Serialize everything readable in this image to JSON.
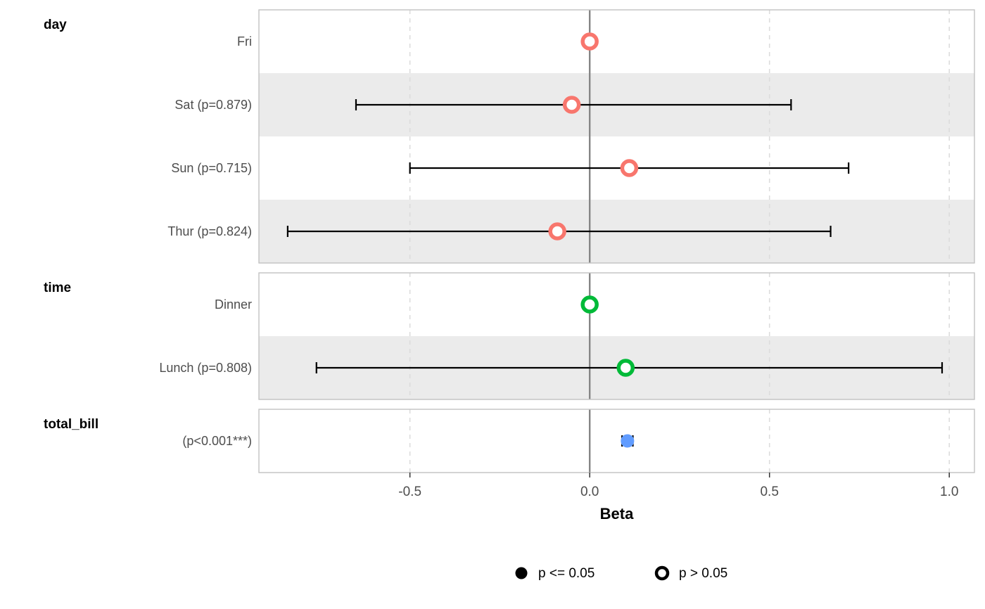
{
  "chart_data": {
    "type": "forest",
    "title": "",
    "xlabel": "Beta",
    "xlim": [
      -0.92,
      1.07
    ],
    "xticks": [
      -0.5,
      0.0,
      0.5,
      1.0
    ],
    "zero_line": 0.0,
    "grid": "dashed-vertical",
    "legend_position": "bottom",
    "groups": [
      {
        "label": "day",
        "color": "#F8766D",
        "rows": [
          {
            "label": "Fri",
            "estimate": 0.0,
            "ci_low": null,
            "ci_high": null,
            "reference": true,
            "open": true
          },
          {
            "label": "Sat (p=0.879)",
            "estimate": -0.05,
            "ci_low": -0.65,
            "ci_high": 0.56,
            "reference": false,
            "open": true
          },
          {
            "label": "Sun (p=0.715)",
            "estimate": 0.11,
            "ci_low": -0.5,
            "ci_high": 0.72,
            "reference": false,
            "open": true
          },
          {
            "label": "Thur (p=0.824)",
            "estimate": -0.09,
            "ci_low": -0.84,
            "ci_high": 0.67,
            "reference": false,
            "open": true
          }
        ]
      },
      {
        "label": "time",
        "color": "#00BA38",
        "rows": [
          {
            "label": "Dinner",
            "estimate": 0.0,
            "ci_low": null,
            "ci_high": null,
            "reference": true,
            "open": true
          },
          {
            "label": "Lunch (p=0.808)",
            "estimate": 0.1,
            "ci_low": -0.76,
            "ci_high": 0.98,
            "reference": false,
            "open": true
          }
        ]
      },
      {
        "label": "total_bill",
        "color": "#619CFF",
        "rows": [
          {
            "label": "(p<0.001***)",
            "estimate": 0.105,
            "ci_low": 0.09,
            "ci_high": 0.12,
            "reference": false,
            "open": false
          }
        ]
      }
    ],
    "legend": [
      {
        "label": "p <= 0.05",
        "open": false
      },
      {
        "label": "p > 0.05",
        "open": true
      }
    ],
    "colors": {
      "stripe": "#EBEBEB",
      "panel_border": "#C2C2C2",
      "zero_line": "#858585",
      "grid_dashed": "#DCDCDC",
      "error_bar": "#000000",
      "row_label_text": "#4D4D4D",
      "tick_label_text": "#4D4D4D",
      "group_label_text": "#000000",
      "axis_title_text": "#000000",
      "legend_text": "#000000",
      "legend_marker": "#000000"
    }
  }
}
